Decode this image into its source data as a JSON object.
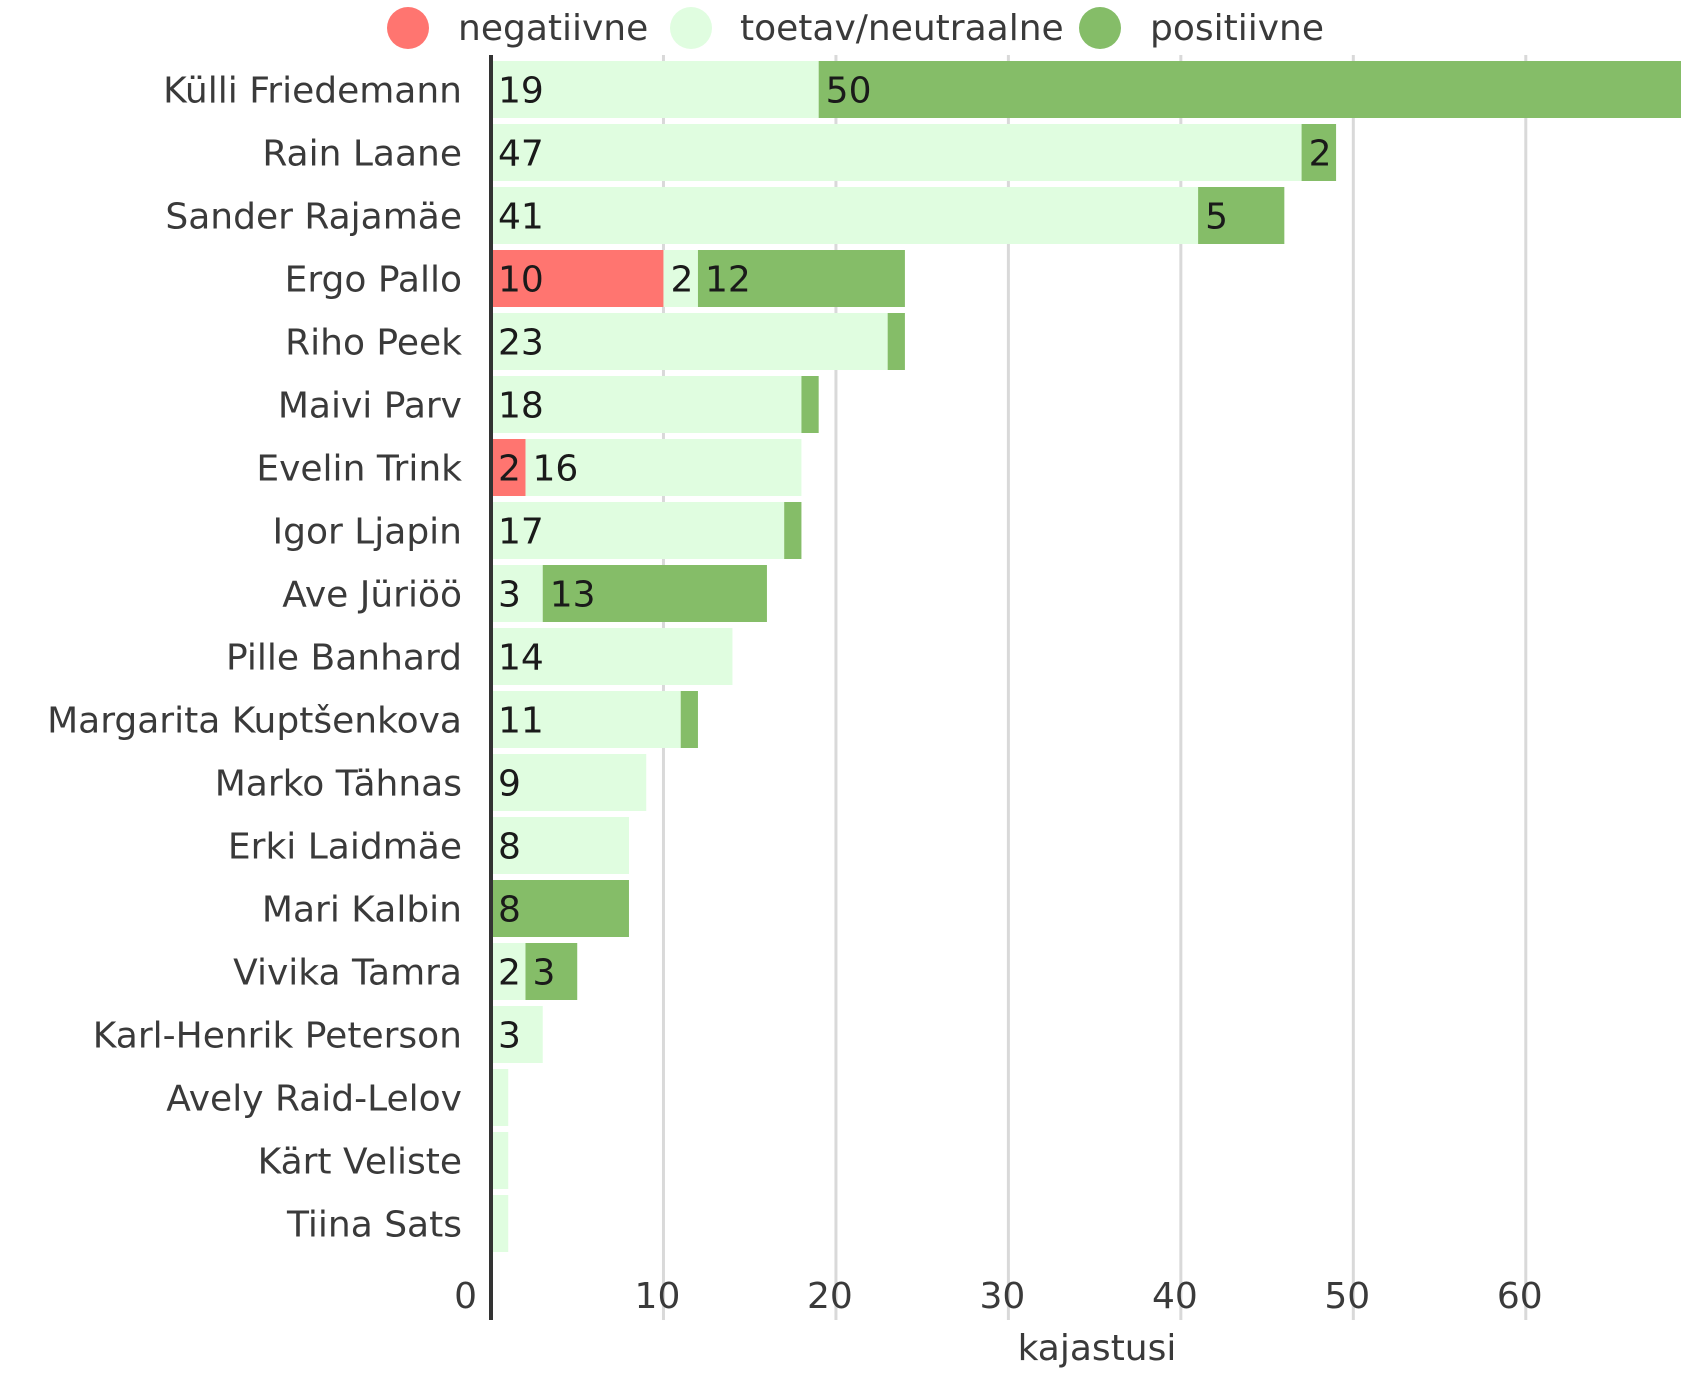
{
  "chart_data": {
    "type": "bar",
    "orientation": "horizontal",
    "stacked": true,
    "xlabel": "kajastusi",
    "ylabel": "",
    "xlim": [
      0,
      69
    ],
    "xticks": [
      0,
      10,
      20,
      30,
      40,
      50,
      60
    ],
    "grid": true,
    "legend_position": "top",
    "categories": [
      "Külli Friedemann",
      "Rain Laane",
      "Sander Rajamäe",
      "Ergo Pallo",
      "Riho Peek",
      "Maivi Parv",
      "Evelin Trink",
      "Igor Ljapin",
      "Ave Jüriöö",
      "Pille Banhard",
      "Margarita Kuptšenkova",
      "Marko Tähnas",
      "Erki Laidmäe",
      "Mari Kalbin",
      "Vivika Tamra",
      "Karl-Henrik Peterson",
      "Avely Raid-Lelov",
      "Kärt Veliste",
      "Tiina Sats"
    ],
    "series": [
      {
        "name": "negatiivne",
        "color": "#ff7570",
        "values": [
          0,
          0,
          0,
          10,
          0,
          0,
          2,
          0,
          0,
          0,
          0,
          0,
          0,
          0,
          0,
          0,
          0,
          0,
          0
        ]
      },
      {
        "name": "toetav/neutraalne",
        "color": "#e0fde0",
        "values": [
          19,
          47,
          41,
          2,
          23,
          18,
          16,
          17,
          3,
          14,
          11,
          9,
          8,
          0,
          2,
          3,
          1,
          1,
          1
        ]
      },
      {
        "name": "positiivne",
        "color": "#85bd68",
        "values": [
          50,
          2,
          5,
          12,
          1,
          1,
          0,
          1,
          13,
          0,
          1,
          0,
          0,
          8,
          3,
          0,
          0,
          0,
          0
        ]
      }
    ]
  }
}
